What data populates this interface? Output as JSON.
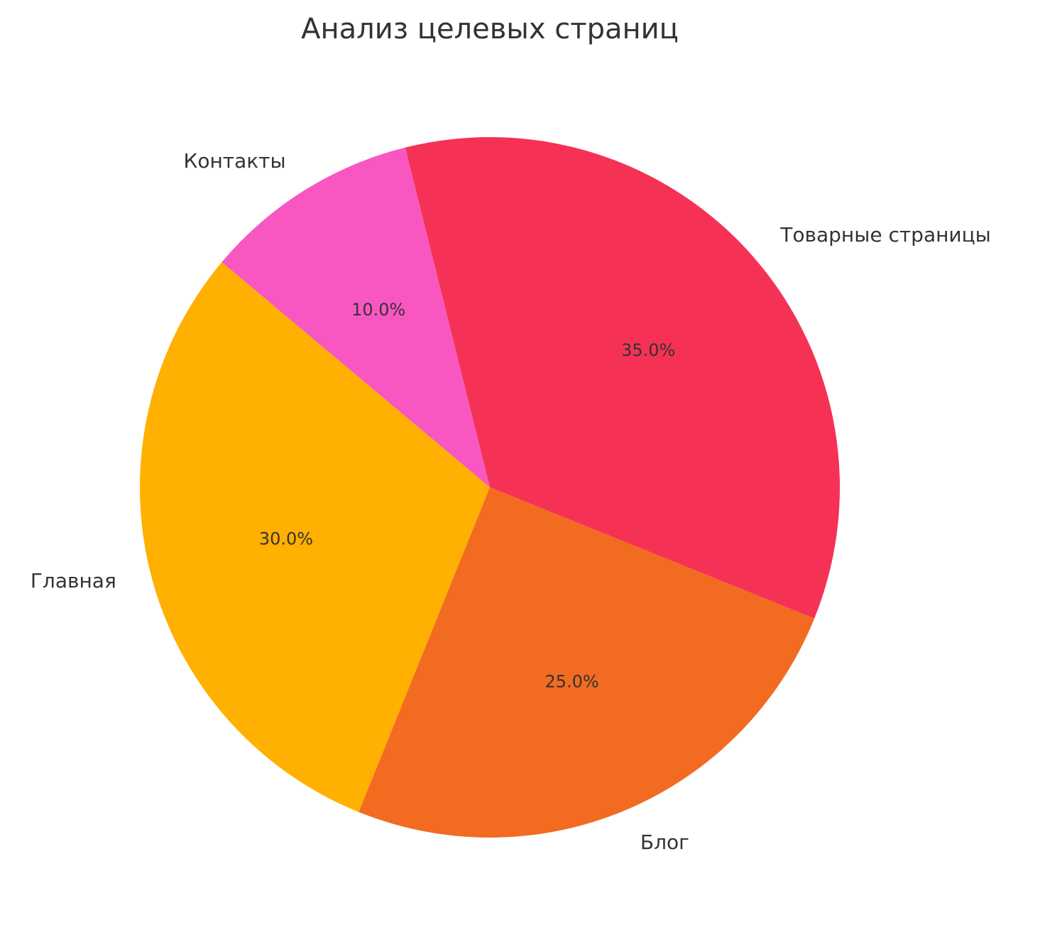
{
  "chart_data": {
    "type": "pie",
    "title": "Анализ целевых страниц",
    "categories": [
      "Товарные страницы",
      "Контакты",
      "Главная",
      "Блог"
    ],
    "values": [
      35.0,
      10.0,
      30.0,
      25.0
    ],
    "value_labels": [
      "35.0%",
      "10.0%",
      "30.0%",
      "25.0%"
    ],
    "colors": [
      "#F53255",
      "#F857C1",
      "#FFB000",
      "#F26B21"
    ],
    "start_angle_deg": -22,
    "direction": "counterclockwise",
    "legend": "none"
  }
}
